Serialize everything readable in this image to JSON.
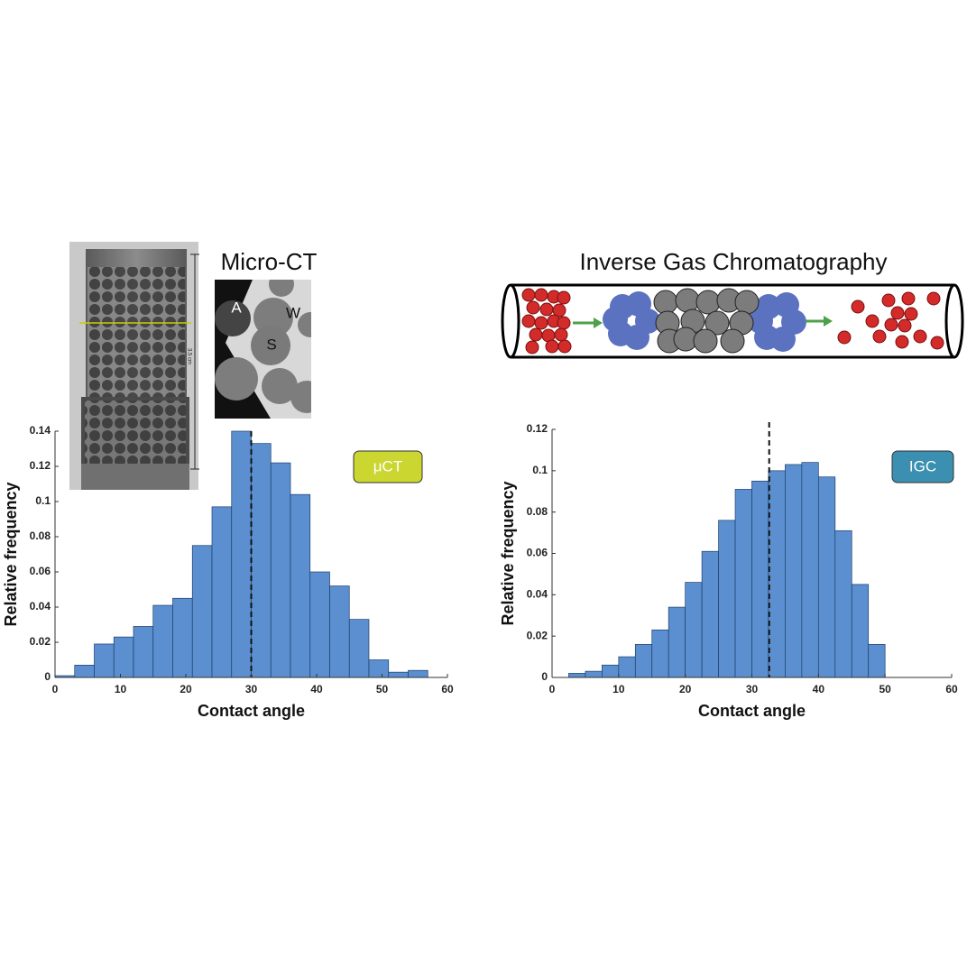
{
  "chart_data": [
    {
      "type": "histogram",
      "title": "Micro-CT",
      "xlabel": "Contact angle",
      "ylabel": "Relative frequency",
      "bins": [
        0,
        3,
        6,
        9,
        12,
        15,
        18,
        21,
        24,
        27,
        30,
        33,
        36,
        39,
        42,
        45,
        48,
        51,
        54,
        57
      ],
      "values": [
        0.001,
        0.007,
        0.019,
        0.023,
        0.029,
        0.041,
        0.045,
        0.075,
        0.097,
        0.14,
        0.133,
        0.122,
        0.104,
        0.06,
        0.052,
        0.033,
        0.01,
        0.003,
        0.004
      ],
      "color": "#5b8fcf",
      "xlim": [
        0,
        60
      ],
      "ylim": [
        0,
        0.14
      ],
      "xticks": [
        0,
        10,
        20,
        30,
        40,
        50,
        60
      ],
      "yticks": [
        0,
        0.02,
        0.04,
        0.06,
        0.08,
        0.1,
        0.12,
        0.14
      ],
      "mean_line": 30,
      "badge": "μCT",
      "badge_color": "#cbd631",
      "image_labels": [
        "A",
        "W",
        "S"
      ],
      "scale_label": "3.5 cm"
    },
    {
      "type": "histogram",
      "title": "Inverse Gas Chromatography",
      "xlabel": "Contact angle",
      "ylabel": "Relative frequency",
      "bins": [
        2.5,
        5,
        7.5,
        10,
        12.5,
        15,
        17.5,
        20,
        22.5,
        25,
        27.5,
        30,
        32.5,
        35,
        37.5,
        40,
        42.5,
        45,
        47.5,
        50
      ],
      "values": [
        0.002,
        0.003,
        0.006,
        0.01,
        0.016,
        0.023,
        0.034,
        0.046,
        0.061,
        0.076,
        0.091,
        0.095,
        0.1,
        0.103,
        0.104,
        0.097,
        0.071,
        0.045,
        0.016
      ],
      "color": "#5b8fcf",
      "xlim": [
        0,
        60
      ],
      "ylim": [
        0,
        0.12
      ],
      "xticks": [
        0,
        10,
        20,
        30,
        40,
        50,
        60
      ],
      "yticks": [
        0,
        0.02,
        0.04,
        0.06,
        0.08,
        0.1,
        0.12
      ],
      "mean_line": 32.6,
      "badge": "IGC",
      "badge_color": "#3b8fb0"
    }
  ]
}
